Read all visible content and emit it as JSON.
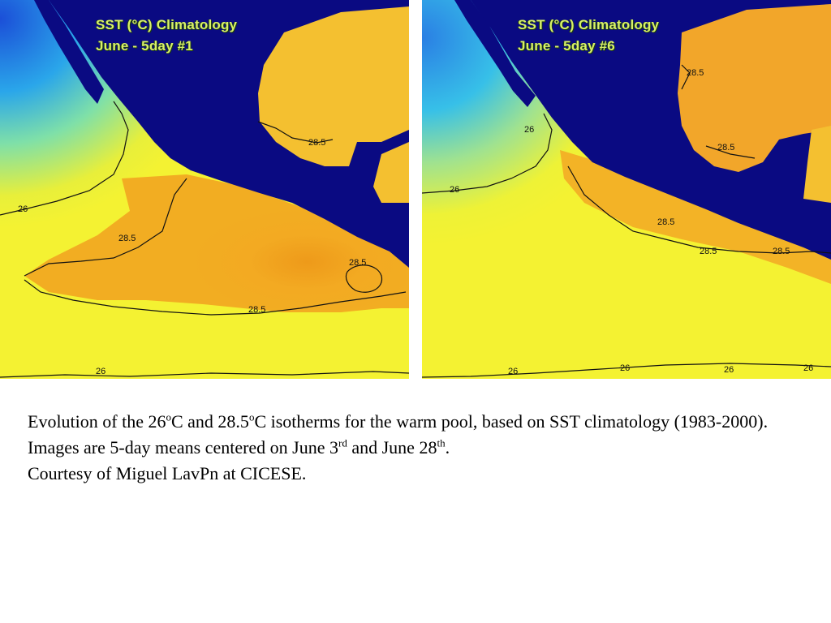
{
  "panels": [
    {
      "title_line1": "SST (°C) Climatology",
      "title_line2": "June - 5day #1",
      "isotherm_labels": [
        "26",
        "28.5",
        "28.5",
        "28.5",
        "28.5",
        "26"
      ]
    },
    {
      "title_line1": "SST (°C) Climatology",
      "title_line2": "June - 5day #6",
      "isotherm_labels": [
        "28.5",
        "26",
        "26",
        "28.5",
        "28.5",
        "28.5",
        "28.5",
        "26",
        "26",
        "26",
        "26"
      ]
    }
  ],
  "caption": {
    "p1": "Evolution of the 26",
    "s1": "o",
    "p2": "C and 28.5",
    "s2": "o",
    "p3": "C isotherms for the warm pool, based on SST climatology (1983-2000).  Images are 5-day means centered on June 3",
    "s3": "rd",
    "p4": " and June 28",
    "s4": "th",
    "p5": ".",
    "line3": "Courtesy of Miguel LavPn at CICESE."
  },
  "colors": {
    "land": "#0a0a82",
    "cold": "#1a6fe0",
    "cool": "#33c6e6",
    "mid": "#a8e27a",
    "warm": "#f2f02c",
    "hot": "#f2b020",
    "hottest": "#ee9a1a",
    "contour": "#111111",
    "title": "#d8f06a"
  }
}
